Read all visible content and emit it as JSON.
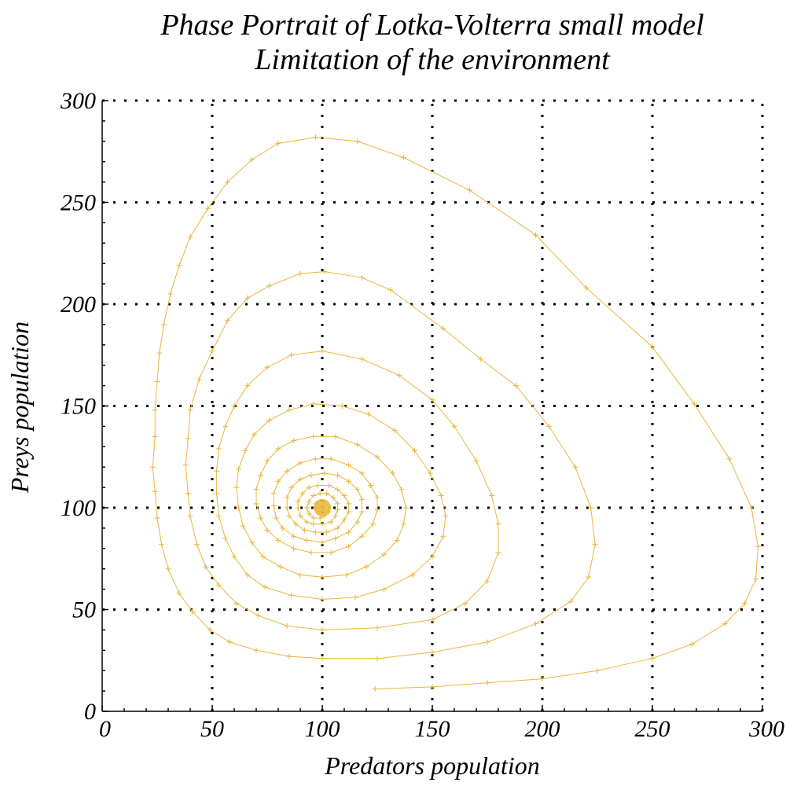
{
  "chart_data": {
    "type": "line",
    "title": "Phase Portrait of Lotka-Volterra small model",
    "subtitle": "Limitation of the environment",
    "xlabel": "Predators population",
    "ylabel": "Preys population",
    "xlim": [
      0,
      300
    ],
    "ylim": [
      0,
      300
    ],
    "x_ticks": [
      "0",
      "50",
      "100",
      "150",
      "200",
      "250",
      "300"
    ],
    "y_ticks": [
      "0",
      "50",
      "100",
      "150",
      "200",
      "250",
      "300"
    ],
    "grid": true,
    "marker": "+",
    "color": "#e9b73c",
    "series": [
      {
        "values_description_x": "predators",
        "points": [
          [
            124,
            11
          ],
          [
            150,
            12
          ],
          [
            175,
            14
          ],
          [
            200,
            16
          ],
          [
            225,
            20
          ],
          [
            250,
            26
          ],
          [
            268,
            33
          ],
          [
            283,
            43
          ],
          [
            292,
            53
          ],
          [
            297,
            65
          ],
          [
            298,
            81
          ],
          [
            295,
            100
          ],
          [
            285,
            124
          ],
          [
            269,
            151
          ],
          [
            250,
            179
          ],
          [
            220,
            208
          ],
          [
            197,
            234
          ],
          [
            167,
            256
          ],
          [
            137,
            272
          ],
          [
            116,
            280
          ],
          [
            97,
            282
          ],
          [
            80,
            279
          ],
          [
            68,
            271
          ],
          [
            57,
            260
          ],
          [
            48,
            247
          ],
          [
            40,
            233
          ],
          [
            35,
            219
          ],
          [
            31,
            205
          ],
          [
            28,
            190
          ],
          [
            26,
            176
          ],
          [
            25,
            162
          ],
          [
            24,
            148
          ],
          [
            24,
            135
          ],
          [
            23,
            120
          ],
          [
            24,
            108
          ],
          [
            25,
            95
          ],
          [
            27,
            82
          ],
          [
            30,
            70
          ],
          [
            35,
            58
          ],
          [
            41,
            49
          ],
          [
            49,
            40
          ],
          [
            58,
            34
          ],
          [
            70,
            30
          ],
          [
            85,
            27
          ],
          [
            100,
            26
          ],
          [
            125,
            26
          ],
          [
            150,
            29
          ],
          [
            175,
            34
          ],
          [
            197,
            43
          ],
          [
            213,
            54
          ],
          [
            221,
            66
          ],
          [
            224,
            82
          ],
          [
            222,
            100
          ],
          [
            215,
            120
          ],
          [
            203,
            140
          ],
          [
            188,
            160
          ],
          [
            172,
            173
          ],
          [
            155,
            188
          ],
          [
            131,
            207
          ],
          [
            118,
            213
          ],
          [
            101,
            216
          ],
          [
            90,
            215
          ],
          [
            76,
            209
          ],
          [
            66,
            203
          ],
          [
            57,
            192
          ],
          [
            50,
            177
          ],
          [
            44,
            163
          ],
          [
            40,
            148
          ],
          [
            39,
            134
          ],
          [
            38,
            121
          ],
          [
            39,
            107
          ],
          [
            40,
            96
          ],
          [
            43,
            82
          ],
          [
            47,
            71
          ],
          [
            53,
            62
          ],
          [
            61,
            53
          ],
          [
            71,
            47
          ],
          [
            84,
            42
          ],
          [
            100,
            40
          ],
          [
            125,
            41
          ],
          [
            150,
            45
          ],
          [
            165,
            53
          ],
          [
            175,
            64
          ],
          [
            180,
            78
          ],
          [
            180,
            92
          ],
          [
            177,
            106
          ],
          [
            170,
            123
          ],
          [
            160,
            140
          ],
          [
            150,
            153
          ],
          [
            135,
            165
          ],
          [
            118,
            173
          ],
          [
            100,
            177
          ],
          [
            86,
            175
          ],
          [
            75,
            169
          ],
          [
            66,
            160
          ],
          [
            60,
            150
          ],
          [
            56,
            140
          ],
          [
            53,
            129
          ],
          [
            52,
            118
          ],
          [
            52,
            107
          ],
          [
            53,
            96
          ],
          [
            56,
            85
          ],
          [
            60,
            76
          ],
          [
            66,
            67
          ],
          [
            74,
            61
          ],
          [
            86,
            57
          ],
          [
            100,
            55
          ],
          [
            115,
            56
          ],
          [
            128,
            60
          ],
          [
            141,
            67
          ],
          [
            150,
            76
          ],
          [
            155,
            86
          ],
          [
            156,
            96
          ],
          [
            154,
            106
          ],
          [
            149,
            117
          ],
          [
            142,
            128
          ],
          [
            133,
            138
          ],
          [
            121,
            146
          ],
          [
            109,
            150
          ],
          [
            96,
            151
          ],
          [
            85,
            148
          ],
          [
            76,
            143
          ],
          [
            69,
            136
          ],
          [
            65,
            128
          ],
          [
            62,
            119
          ],
          [
            61,
            110
          ],
          [
            62,
            100
          ],
          [
            64,
            91
          ],
          [
            68,
            83
          ],
          [
            73,
            76
          ],
          [
            81,
            71
          ],
          [
            90,
            67
          ],
          [
            100,
            66
          ],
          [
            111,
            67
          ],
          [
            120,
            71
          ],
          [
            128,
            77
          ],
          [
            134,
            84
          ],
          [
            137,
            92
          ],
          [
            138,
            100
          ],
          [
            136,
            109
          ],
          [
            132,
            117
          ],
          [
            125,
            125
          ],
          [
            116,
            131
          ],
          [
            106,
            135
          ],
          [
            96,
            135
          ],
          [
            87,
            133
          ],
          [
            80,
            129
          ],
          [
            75,
            123
          ],
          [
            72,
            116
          ],
          [
            70,
            109
          ],
          [
            70,
            102
          ],
          [
            72,
            95
          ],
          [
            75,
            89
          ],
          [
            80,
            84
          ],
          [
            87,
            80
          ],
          [
            95,
            78
          ],
          [
            104,
            78
          ],
          [
            112,
            81
          ],
          [
            118,
            86
          ],
          [
            123,
            92
          ],
          [
            125,
            99
          ],
          [
            125,
            105
          ],
          [
            122,
            111
          ],
          [
            118,
            117
          ],
          [
            112,
            121
          ],
          [
            104,
            124
          ],
          [
            97,
            124
          ],
          [
            90,
            122
          ],
          [
            84,
            118
          ],
          [
            80,
            113
          ],
          [
            78,
            107
          ],
          [
            78,
            101
          ],
          [
            79,
            95
          ],
          [
            82,
            90
          ],
          [
            87,
            86
          ],
          [
            93,
            84
          ],
          [
            100,
            83
          ],
          [
            106,
            85
          ],
          [
            112,
            88
          ],
          [
            116,
            93
          ],
          [
            118,
            98
          ],
          [
            118,
            104
          ],
          [
            116,
            109
          ],
          [
            112,
            113
          ],
          [
            107,
            116
          ],
          [
            101,
            117
          ],
          [
            95,
            116
          ],
          [
            90,
            114
          ],
          [
            86,
            110
          ],
          [
            84,
            105
          ],
          [
            84,
            100
          ],
          [
            85,
            96
          ],
          [
            88,
            92
          ],
          [
            92,
            89
          ],
          [
            97,
            88
          ],
          [
            102,
            88
          ],
          [
            107,
            90
          ],
          [
            110,
            94
          ],
          [
            112,
            98
          ],
          [
            112,
            102
          ],
          [
            110,
            106
          ],
          [
            107,
            109
          ],
          [
            103,
            111
          ],
          [
            98,
            111
          ],
          [
            94,
            110
          ],
          [
            91,
            107
          ],
          [
            89,
            103
          ],
          [
            89,
            100
          ],
          [
            90,
            96
          ],
          [
            93,
            93
          ],
          [
            96,
            92
          ],
          [
            100,
            92
          ],
          [
            104,
            93
          ],
          [
            106,
            96
          ],
          [
            107,
            99
          ],
          [
            107,
            102
          ],
          [
            105,
            105
          ],
          [
            102,
            107
          ],
          [
            99,
            107
          ],
          [
            96,
            106
          ],
          [
            94,
            103
          ],
          [
            93,
            100
          ],
          [
            94,
            97
          ],
          [
            96,
            95
          ],
          [
            99,
            95
          ],
          [
            101,
            96
          ],
          [
            103,
            98
          ],
          [
            103,
            101
          ],
          [
            101,
            103
          ],
          [
            99,
            103
          ],
          [
            97,
            102
          ],
          [
            97,
            100
          ],
          [
            98,
            98
          ],
          [
            100,
            98
          ],
          [
            101,
            99
          ],
          [
            100,
            101
          ],
          [
            99,
            100
          ],
          [
            100,
            100
          ]
        ]
      }
    ]
  }
}
